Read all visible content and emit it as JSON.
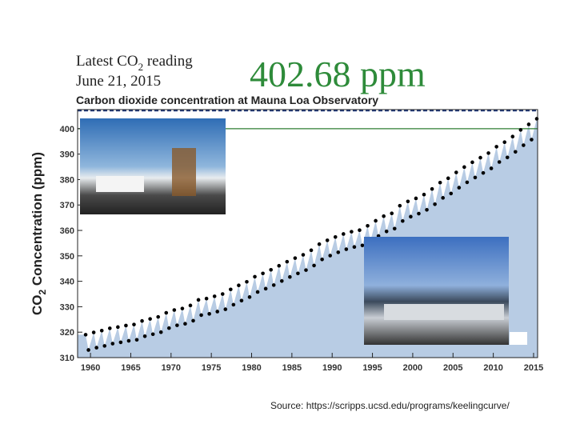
{
  "chart_data": {
    "type": "scatter",
    "header": {
      "prefix": "Latest CO",
      "sub": "2",
      "suffix": " reading",
      "date": "June 21, 2015",
      "reading": "402.68 ppm"
    },
    "title": "Carbon dioxide concentration at Mauna Loa Observatory",
    "ylabel": {
      "prefix": "CO",
      "sub": "2",
      "suffix": " Concentration (ppm)"
    },
    "source": "Source: https://scripps.ucsd.edu/programs/keelingcurve/",
    "color": "#000000",
    "area_color": "#b8cce4",
    "hline": 400,
    "hline_color": "#2e7d32",
    "xlim": [
      1958.4,
      2015.5
    ],
    "ylim": [
      310,
      407.5
    ],
    "xticks": [
      1960,
      1965,
      1970,
      1975,
      1980,
      1985,
      1990,
      1995,
      2000,
      2005,
      2010,
      2015
    ],
    "yticks": [
      310,
      320,
      330,
      340,
      350,
      360,
      370,
      380,
      390,
      400
    ],
    "x": [
      1959.4,
      1959.75,
      1960.4,
      1960.75,
      1961.4,
      1961.75,
      1962.4,
      1962.75,
      1963.4,
      1963.75,
      1964.4,
      1964.75,
      1965.4,
      1965.75,
      1966.4,
      1966.75,
      1967.4,
      1967.75,
      1968.4,
      1968.75,
      1969.4,
      1969.75,
      1970.4,
      1970.75,
      1971.4,
      1971.75,
      1972.4,
      1972.75,
      1973.4,
      1973.75,
      1974.4,
      1974.75,
      1975.4,
      1975.75,
      1976.4,
      1976.75,
      1977.4,
      1977.75,
      1978.4,
      1978.75,
      1979.4,
      1979.75,
      1980.4,
      1980.75,
      1981.4,
      1981.75,
      1982.4,
      1982.75,
      1983.4,
      1983.75,
      1984.4,
      1984.75,
      1985.4,
      1985.75,
      1986.4,
      1986.75,
      1987.4,
      1987.75,
      1988.4,
      1988.75,
      1989.4,
      1989.75,
      1990.4,
      1990.75,
      1991.4,
      1991.75,
      1992.4,
      1992.75,
      1993.4,
      1993.75,
      1994.4,
      1994.75,
      1995.4,
      1995.75,
      1996.4,
      1996.75,
      1997.4,
      1997.75,
      1998.4,
      1998.75,
      1999.4,
      1999.75,
      2000.4,
      2000.75,
      2001.4,
      2001.75,
      2002.4,
      2002.75,
      2003.4,
      2003.75,
      2004.4,
      2004.75,
      2005.4,
      2005.75,
      2006.4,
      2006.75,
      2007.4,
      2007.75,
      2008.4,
      2008.75,
      2009.4,
      2009.75,
      2010.4,
      2010.75,
      2011.4,
      2011.75,
      2012.4,
      2012.75,
      2013.4,
      2013.75,
      2014.4,
      2014.75,
      2015.4
    ],
    "values": [
      319.0,
      313.0,
      319.9,
      313.9,
      320.6,
      314.6,
      321.5,
      315.5,
      322.0,
      316.0,
      322.6,
      316.6,
      323.0,
      317.0,
      324.4,
      318.4,
      325.2,
      319.2,
      326.0,
      320.0,
      327.6,
      321.6,
      328.7,
      322.7,
      329.3,
      323.3,
      330.5,
      324.5,
      332.7,
      326.7,
      333.2,
      327.2,
      334.1,
      328.1,
      335.0,
      329.0,
      336.8,
      330.8,
      338.4,
      332.4,
      339.8,
      333.8,
      341.8,
      335.8,
      343.1,
      337.1,
      344.5,
      338.5,
      346.1,
      340.1,
      347.7,
      341.7,
      349.1,
      343.1,
      350.4,
      344.4,
      352.2,
      346.2,
      354.6,
      348.6,
      356.1,
      350.1,
      357.4,
      351.4,
      358.6,
      352.6,
      359.5,
      353.5,
      360.1,
      354.1,
      361.8,
      355.8,
      363.8,
      357.8,
      365.6,
      359.6,
      366.7,
      360.7,
      369.7,
      363.7,
      371.4,
      365.4,
      372.6,
      366.6,
      374.1,
      368.1,
      376.3,
      370.3,
      378.8,
      372.8,
      380.5,
      374.5,
      382.8,
      376.8,
      384.9,
      378.9,
      386.8,
      380.8,
      388.6,
      382.6,
      390.4,
      384.4,
      392.9,
      386.9,
      394.7,
      388.7,
      396.9,
      390.9,
      399.5,
      393.5,
      401.7,
      395.7,
      403.9
    ]
  }
}
